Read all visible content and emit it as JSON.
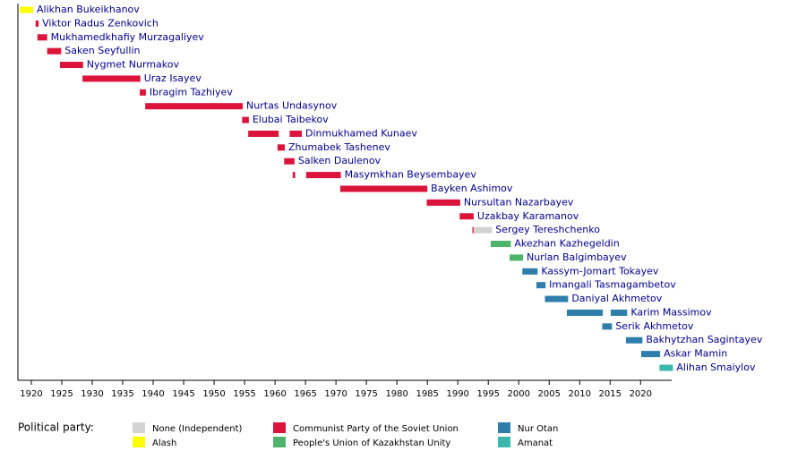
{
  "chart_data": {
    "type": "timeline",
    "xlim": [
      1917.8,
      2025.1
    ],
    "xticks": [
      1920,
      1925,
      1930,
      1935,
      1940,
      1945,
      1950,
      1955,
      1960,
      1965,
      1970,
      1975,
      1980,
      1985,
      1990,
      1995,
      2000,
      2005,
      2010,
      2015,
      2020
    ],
    "rows": [
      {
        "name": "Alikhan Bukeikhanov",
        "segments": [
          {
            "start": 1918.1,
            "end": 1920.3,
            "color": "#ffff00"
          }
        ]
      },
      {
        "name": "Viktor Radus Zenkovich",
        "segments": [
          {
            "start": 1920.7,
            "end": 1921.2,
            "color": "#dc143c"
          }
        ]
      },
      {
        "name": "Mukhamedkhafiy Murzagaliyev",
        "segments": [
          {
            "start": 1921.0,
            "end": 1922.6,
            "color": "#dc143c"
          }
        ]
      },
      {
        "name": "Saken Seyfullin",
        "segments": [
          {
            "start": 1922.6,
            "end": 1924.9,
            "color": "#dc143c"
          }
        ]
      },
      {
        "name": "Nygmet Nurmakov",
        "segments": [
          {
            "start": 1924.7,
            "end": 1928.5,
            "color": "#dc143c"
          }
        ]
      },
      {
        "name": "Uraz Isayev",
        "segments": [
          {
            "start": 1928.4,
            "end": 1937.9,
            "color": "#dc143c"
          }
        ]
      },
      {
        "name": "Ibragim Tazhiyev",
        "segments": [
          {
            "start": 1937.8,
            "end": 1938.8,
            "color": "#dc143c"
          }
        ]
      },
      {
        "name": "Nurtas Undasynov",
        "segments": [
          {
            "start": 1938.7,
            "end": 1954.7,
            "color": "#dc143c"
          }
        ]
      },
      {
        "name": "Elubai Taibekov",
        "segments": [
          {
            "start": 1954.6,
            "end": 1955.7,
            "color": "#dc143c"
          }
        ]
      },
      {
        "name": "Dinmukhamed Kunaev",
        "segments": [
          {
            "start": 1955.6,
            "end": 1960.6,
            "color": "#dc143c"
          },
          {
            "start": 1962.4,
            "end": 1964.4,
            "color": "#dc143c"
          }
        ]
      },
      {
        "name": "Zhumabek Tashenev",
        "segments": [
          {
            "start": 1960.4,
            "end": 1961.6,
            "color": "#dc143c"
          }
        ]
      },
      {
        "name": "Salken Daulenov",
        "segments": [
          {
            "start": 1961.5,
            "end": 1963.2,
            "color": "#dc143c"
          }
        ]
      },
      {
        "name": "Masymkhan Beysembayev",
        "segments": [
          {
            "start": 1962.9,
            "end": 1963.3,
            "color": "#dc143c"
          },
          {
            "start": 1965.1,
            "end": 1970.8,
            "color": "#dc143c"
          }
        ]
      },
      {
        "name": "Bayken Ashimov",
        "segments": [
          {
            "start": 1970.7,
            "end": 1985.0,
            "color": "#dc143c"
          }
        ]
      },
      {
        "name": "Nursultan Nazarbayev",
        "segments": [
          {
            "start": 1984.9,
            "end": 1990.4,
            "color": "#dc143c"
          }
        ]
      },
      {
        "name": "Uzakbay Karamanov",
        "segments": [
          {
            "start": 1990.3,
            "end": 1992.6,
            "color": "#dc143c"
          }
        ]
      },
      {
        "name": "Sergey Tereshchenko",
        "segments": [
          {
            "start": 1992.4,
            "end": 1992.6,
            "color": "#dc143c"
          },
          {
            "start": 1992.6,
            "end": 1995.6,
            "color": "#d3d3d3"
          }
        ]
      },
      {
        "name": "Akezhan Kazhegeldin",
        "segments": [
          {
            "start": 1995.4,
            "end": 1998.7,
            "color": "#4fb46b"
          }
        ]
      },
      {
        "name": "Nurlan Balgimbayev",
        "segments": [
          {
            "start": 1998.5,
            "end": 2000.7,
            "color": "#4fb46b"
          }
        ]
      },
      {
        "name": "Kassym-Jomart Tokayev",
        "segments": [
          {
            "start": 2000.6,
            "end": 2003.1,
            "color": "#2f7dab"
          }
        ]
      },
      {
        "name": "Imangali Tasmagambetov",
        "segments": [
          {
            "start": 2002.9,
            "end": 2004.4,
            "color": "#2f7dab"
          }
        ]
      },
      {
        "name": "Daniyal Akhmetov",
        "segments": [
          {
            "start": 2004.3,
            "end": 2008.1,
            "color": "#2f7dab"
          }
        ]
      },
      {
        "name": "Karim Massimov",
        "segments": [
          {
            "start": 2007.9,
            "end": 2013.8,
            "color": "#2f7dab"
          },
          {
            "start": 2015.1,
            "end": 2017.8,
            "color": "#2f7dab"
          }
        ]
      },
      {
        "name": "Serik Akhmetov",
        "segments": [
          {
            "start": 2013.7,
            "end": 2015.3,
            "color": "#2f7dab"
          }
        ]
      },
      {
        "name": "Bakhytzhan Sagintayev",
        "segments": [
          {
            "start": 2017.6,
            "end": 2020.3,
            "color": "#2f7dab"
          }
        ]
      },
      {
        "name": "Askar Mamin",
        "segments": [
          {
            "start": 2020.1,
            "end": 2023.2,
            "color": "#2f7dab"
          }
        ]
      },
      {
        "name": "Alihan Smaiylov",
        "segments": [
          {
            "start": 2023.1,
            "end": 2025.3,
            "color": "#3db6ad"
          }
        ]
      }
    ],
    "legend": {
      "title": "Political party:",
      "items": [
        {
          "name": "None (Independent)",
          "color": "#d3d3d3"
        },
        {
          "name": "Alash",
          "color": "#ffff00"
        },
        {
          "name": "Communist Party of the Soviet Union",
          "color": "#dc143c"
        },
        {
          "name": "People's Union of Kazakhstan Unity",
          "color": "#4fb46b"
        },
        {
          "name": "Nur Otan",
          "color": "#2f7dab"
        },
        {
          "name": "Amanat",
          "color": "#3db6ad"
        }
      ]
    }
  }
}
